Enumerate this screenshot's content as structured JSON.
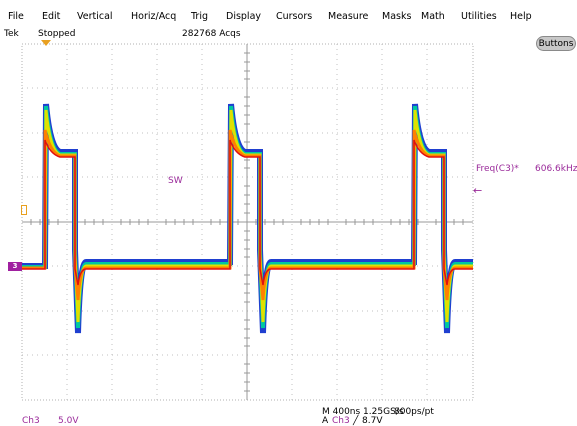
{
  "menu": [
    "File",
    "Edit",
    "Vertical",
    "Horiz/Acq",
    "Trig",
    "Display",
    "Cursors",
    "Measure",
    "Masks",
    "Math",
    "Utilities",
    "Help"
  ],
  "status": {
    "brand": "Tek",
    "run_state": "Stopped",
    "acquisitions": "282768 Acqs"
  },
  "buttons_label": "Buttons",
  "waveform_label": "SW",
  "channel_marker": "3",
  "measurement": {
    "name": "Freq(C3)*",
    "value": "606.6kHz"
  },
  "bottom": {
    "channel": "Ch3",
    "scale": "5.0V",
    "horizontal": "M 400ns 1.25GS/s",
    "record": "800ps/pt",
    "trigger_prefix": "A",
    "trigger_channel": "Ch3",
    "trigger_slope_symbol": "╱",
    "trigger_level": "8.7V"
  },
  "colors": {
    "graticule": "#b0b0b0",
    "channel": "#9a2a9a",
    "trigger_marker": "#e8a020",
    "persistence": [
      "#1f3fd0",
      "#00c8a0",
      "#e0e000",
      "#ff8000",
      "#e01010"
    ]
  }
}
